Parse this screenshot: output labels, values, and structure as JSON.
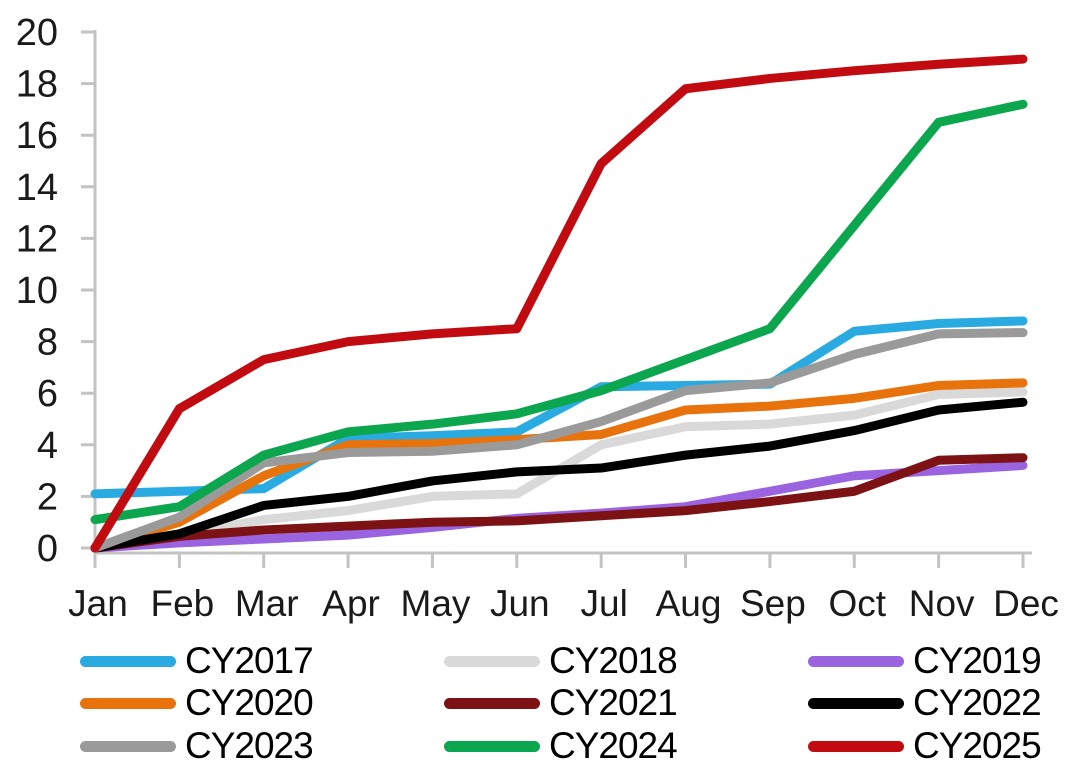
{
  "chart_data": {
    "type": "line",
    "title": "",
    "xlabel": "",
    "ylabel": "",
    "categories": [
      "Jan",
      "Feb",
      "Mar",
      "Apr",
      "May",
      "Jun",
      "Jul",
      "Aug",
      "Sep",
      "Oct",
      "Nov",
      "Dec"
    ],
    "ylim": [
      0,
      20
    ],
    "ytick_step": 2,
    "y_tick_labels": [
      "0",
      "2",
      "4",
      "6",
      "8",
      "10",
      "12",
      "14",
      "16",
      "18",
      "20"
    ],
    "grid": false,
    "legend_position": "bottom",
    "legend_columns": 3,
    "legend_order": [
      "CY2017",
      "CY2018",
      "CY2019",
      "CY2020",
      "CY2021",
      "CY2022",
      "CY2023",
      "CY2024",
      "CY2025"
    ],
    "axis_color": "#c3c3c3",
    "text_color": "#1a1a1a",
    "line_width": 9,
    "series": [
      {
        "name": "CY2017",
        "color": "#29abe2",
        "values": [
          2.1,
          2.2,
          2.3,
          4.25,
          4.35,
          4.5,
          6.25,
          6.3,
          6.35,
          8.4,
          8.7,
          8.8
        ]
      },
      {
        "name": "CY2018",
        "color": "#d9d9d9",
        "values": [
          0,
          0.5,
          1.1,
          1.45,
          2.0,
          2.1,
          4.0,
          4.7,
          4.8,
          5.15,
          5.95,
          6.05
        ]
      },
      {
        "name": "CY2019",
        "color": "#9a63e0",
        "values": [
          0,
          0.2,
          0.35,
          0.5,
          0.8,
          1.15,
          1.35,
          1.6,
          2.2,
          2.8,
          3.0,
          3.2
        ]
      },
      {
        "name": "CY2020",
        "color": "#e8730c",
        "values": [
          0,
          1.0,
          2.8,
          4.0,
          4.05,
          4.2,
          4.4,
          5.35,
          5.5,
          5.8,
          6.3,
          6.4
        ]
      },
      {
        "name": "CY2021",
        "color": "#7d1215",
        "values": [
          0,
          0.45,
          0.7,
          0.85,
          1.0,
          1.05,
          1.25,
          1.45,
          1.8,
          2.2,
          3.4,
          3.5
        ]
      },
      {
        "name": "CY2022",
        "color": "#000000",
        "values": [
          0,
          0.55,
          1.65,
          2.0,
          2.6,
          2.95,
          3.1,
          3.6,
          3.95,
          4.55,
          5.35,
          5.65
        ]
      },
      {
        "name": "CY2023",
        "color": "#9a9a9a",
        "values": [
          0,
          1.2,
          3.3,
          3.7,
          3.75,
          4.0,
          4.9,
          6.1,
          6.4,
          7.5,
          8.3,
          8.35
        ]
      },
      {
        "name": "CY2024",
        "color": "#0ba64e",
        "values": [
          1.1,
          1.6,
          3.6,
          4.5,
          4.8,
          5.2,
          6.1,
          7.3,
          8.5,
          12.5,
          16.5,
          17.2
        ]
      },
      {
        "name": "CY2025",
        "color": "#c20b10",
        "values": [
          0,
          5.4,
          7.3,
          8.0,
          8.3,
          8.5,
          14.9,
          17.8,
          18.2,
          18.5,
          18.75,
          18.95
        ]
      }
    ]
  }
}
